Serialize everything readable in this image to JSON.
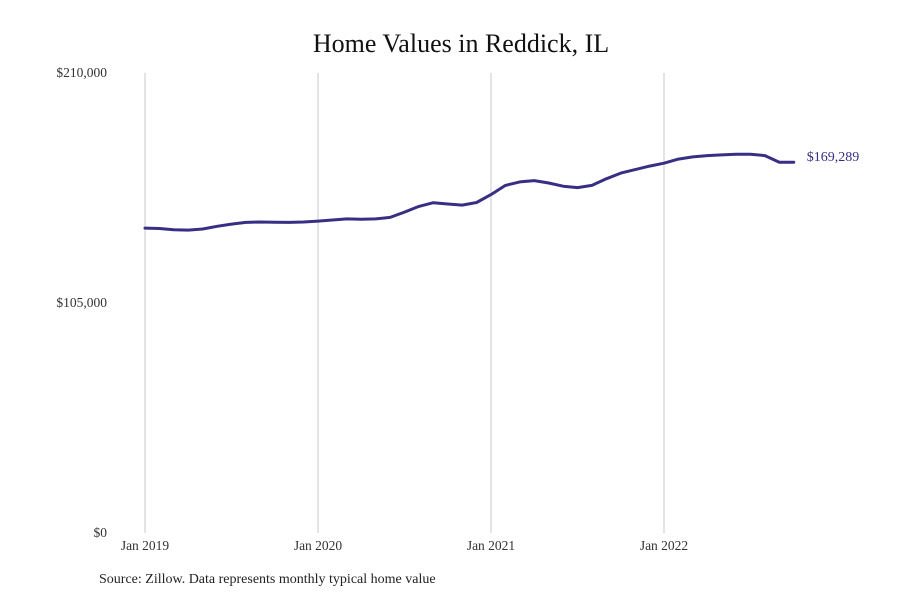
{
  "chart_data": {
    "type": "line",
    "title": "Home Values in Reddick, IL",
    "xlabel": "",
    "ylabel": "",
    "x": [
      "2019-01",
      "2019-02",
      "2019-03",
      "2019-04",
      "2019-05",
      "2019-06",
      "2019-07",
      "2019-08",
      "2019-09",
      "2019-10",
      "2019-11",
      "2019-12",
      "2020-01",
      "2020-02",
      "2020-03",
      "2020-04",
      "2020-05",
      "2020-06",
      "2020-07",
      "2020-08",
      "2020-09",
      "2020-10",
      "2020-11",
      "2020-12",
      "2021-01",
      "2021-02",
      "2021-03",
      "2021-04",
      "2021-05",
      "2021-06",
      "2021-07",
      "2021-08",
      "2021-09",
      "2021-10",
      "2021-11",
      "2021-12",
      "2022-01",
      "2022-02",
      "2022-03",
      "2022-04",
      "2022-05",
      "2022-06",
      "2022-07",
      "2022-08",
      "2022-09",
      "2022-10"
    ],
    "series": [
      {
        "values": [
          139200,
          139000,
          138400,
          138300,
          138800,
          140000,
          141000,
          141800,
          142000,
          141900,
          141800,
          142000,
          142400,
          142900,
          143400,
          143200,
          143400,
          144100,
          146500,
          149100,
          150800,
          150200,
          149700,
          150900,
          154500,
          158700,
          160300,
          160900,
          159800,
          158300,
          157700,
          158700,
          161700,
          164300,
          165900,
          167500,
          168800,
          170700,
          171700,
          172300,
          172600,
          172900,
          172900,
          172300,
          169289,
          169289
        ],
        "color": "#372f84"
      }
    ],
    "x_ticks": [
      "Jan 2019",
      "Jan 2020",
      "Jan 2021",
      "Jan 2022"
    ],
    "y_ticks": [
      "$210,000",
      "$105,000",
      "$0"
    ],
    "ylim": [
      0,
      210000
    ],
    "end_label": "$169,289",
    "grid": "vertical",
    "legend": "none"
  },
  "source_note": "Source: Zillow. Data represents monthly typical home value"
}
